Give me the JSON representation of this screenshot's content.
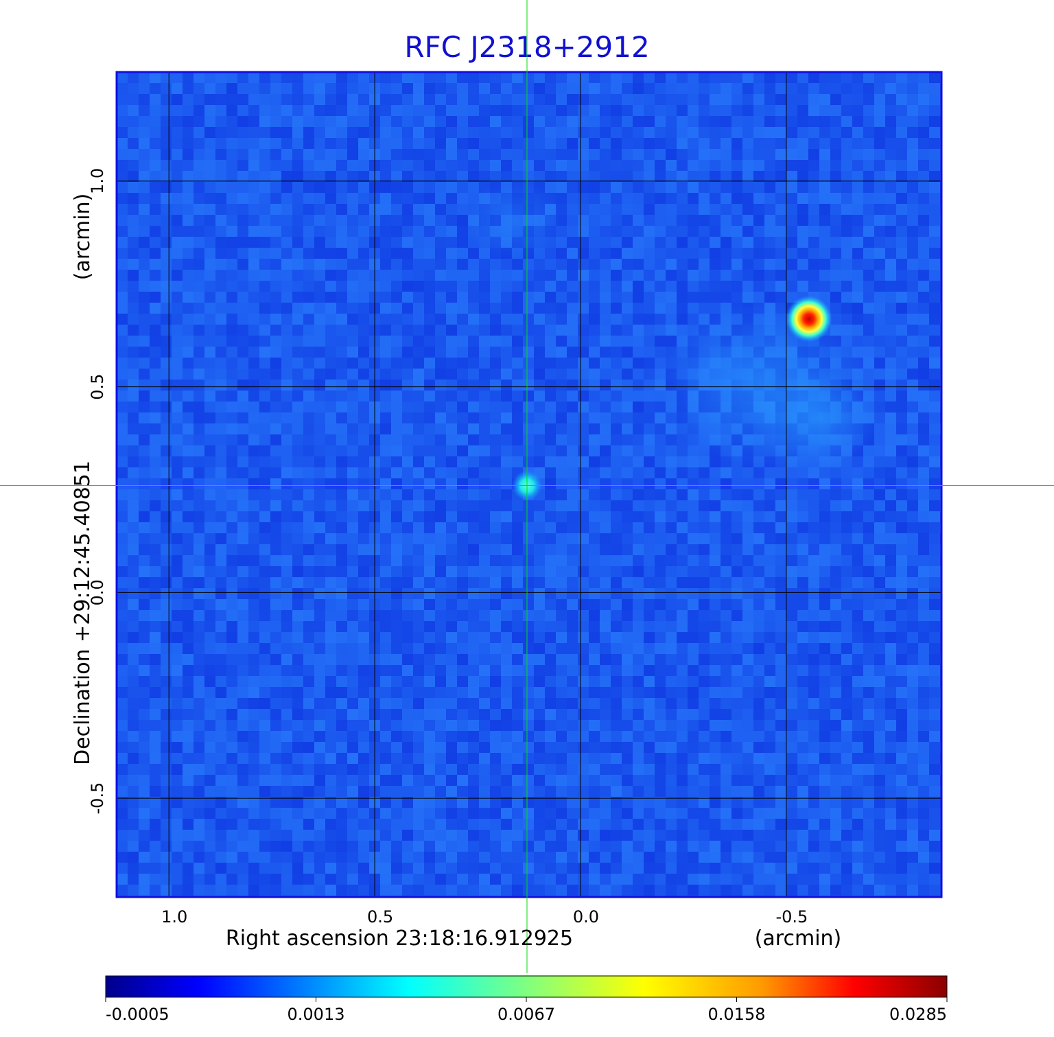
{
  "chart_data": {
    "type": "heatmap",
    "title": "RFC J2318+2912",
    "xlabel": "Right ascension  23:18:16.912925",
    "xunit": "(arcmin)",
    "ylabel": "Declination  +29:12:45.40851",
    "yunit": "(arcmin)",
    "x_ticks": [
      "1.0",
      "0.5",
      "0.0",
      "-0.5"
    ],
    "x_tick_values": [
      1.0,
      0.5,
      0.0,
      -0.5
    ],
    "y_ticks": [
      "1.0",
      "0.5",
      "0.0",
      "-0.5"
    ],
    "y_tick_values": [
      1.0,
      0.5,
      0.0,
      -0.5
    ],
    "xlim": [
      1.127,
      -0.877
    ],
    "ylim": [
      -0.74,
      1.265
    ],
    "grid": true,
    "crosshair": {
      "x": 0.13,
      "y": 0.26,
      "color": "#00e000"
    },
    "sources": [
      {
        "x": -0.555,
        "y": 0.665,
        "peak": 0.0285
      },
      {
        "x": 0.13,
        "y": 0.26,
        "peak": 0.0045
      }
    ],
    "colorbar": {
      "colormap": "jet",
      "tick_labels": [
        "-0.0005",
        "0.0013",
        "0.0067",
        "0.0158",
        "0.0285"
      ],
      "range": [
        -0.0005,
        0.0285
      ]
    }
  }
}
